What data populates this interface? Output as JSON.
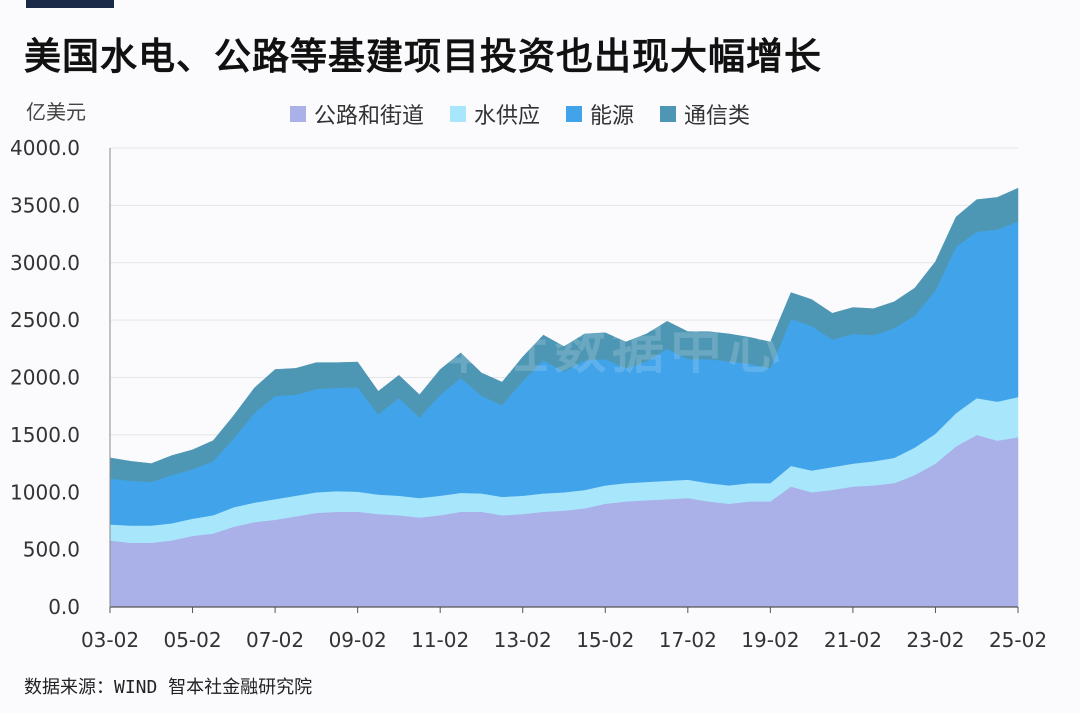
{
  "title": "美国水电、公路等基建项目投资也出现大幅增长",
  "source": "数据来源：WIND 智本社金融研究院",
  "watermark": "智本社数据中心",
  "colors": {
    "road": "#aab0e8",
    "water": "#a8e6fb",
    "energy": "#41a3ea",
    "telecom": "#4e97b4"
  },
  "chart_data": {
    "type": "area",
    "stacked": true,
    "ylabel": "亿美元",
    "ylim": [
      0,
      4000
    ],
    "yticks": [
      "0.0",
      "500.0",
      "1000.0",
      "1500.0",
      "2000.0",
      "2500.0",
      "3000.0",
      "3500.0",
      "4000.0"
    ],
    "xticks": [
      "03-02",
      "05-02",
      "07-02",
      "09-02",
      "11-02",
      "13-02",
      "15-02",
      "17-02",
      "19-02",
      "21-02",
      "23-02",
      "25-02"
    ],
    "grid": true,
    "legend_position": "top",
    "x": [
      2003.0,
      2003.5,
      2004.0,
      2004.5,
      2005.0,
      2005.5,
      2006.0,
      2006.5,
      2007.0,
      2007.5,
      2008.0,
      2008.5,
      2009.0,
      2009.5,
      2010.0,
      2010.5,
      2011.0,
      2011.5,
      2012.0,
      2012.5,
      2013.0,
      2013.5,
      2014.0,
      2014.5,
      2015.0,
      2015.5,
      2016.0,
      2016.5,
      2017.0,
      2017.5,
      2018.0,
      2018.5,
      2019.0,
      2019.5,
      2020.0,
      2020.5,
      2021.0,
      2021.5,
      2022.0,
      2022.5,
      2023.0,
      2023.5,
      2024.0,
      2024.5,
      2025.0
    ],
    "series": [
      {
        "name": "公路和街道",
        "values": [
          580,
          560,
          560,
          580,
          620,
          640,
          700,
          740,
          760,
          790,
          820,
          830,
          830,
          810,
          800,
          780,
          800,
          830,
          830,
          800,
          810,
          830,
          840,
          860,
          900,
          920,
          930,
          940,
          950,
          920,
          900,
          920,
          920,
          1050,
          1000,
          1020,
          1050,
          1060,
          1080,
          1150,
          1250,
          1400,
          1500,
          1450,
          1480
        ]
      },
      {
        "name": "水供应",
        "values": [
          140,
          150,
          150,
          150,
          150,
          160,
          170,
          170,
          180,
          180,
          180,
          180,
          175,
          170,
          170,
          170,
          170,
          165,
          160,
          160,
          160,
          160,
          160,
          160,
          160,
          160,
          160,
          160,
          160,
          160,
          160,
          160,
          160,
          180,
          190,
          200,
          200,
          210,
          220,
          240,
          260,
          290,
          320,
          340,
          350
        ]
      },
      {
        "name": "能源",
        "values": [
          400,
          390,
          380,
          420,
          430,
          470,
          600,
          780,
          900,
          880,
          900,
          900,
          910,
          700,
          850,
          700,
          880,
          1000,
          850,
          800,
          1000,
          1160,
          1050,
          1130,
          1100,
          1000,
          1050,
          1150,
          1050,
          1080,
          1080,
          1040,
          1000,
          1280,
          1260,
          1110,
          1130,
          1100,
          1130,
          1150,
          1250,
          1450,
          1450,
          1500,
          1530
        ]
      },
      {
        "name": "通信类",
        "values": [
          180,
          170,
          160,
          170,
          170,
          180,
          200,
          220,
          230,
          230,
          230,
          220,
          220,
          200,
          200,
          200,
          220,
          220,
          200,
          200,
          210,
          220,
          220,
          230,
          230,
          230,
          240,
          240,
          240,
          240,
          240,
          230,
          230,
          230,
          230,
          230,
          230,
          230,
          230,
          240,
          250,
          260,
          280,
          280,
          290
        ]
      }
    ]
  }
}
